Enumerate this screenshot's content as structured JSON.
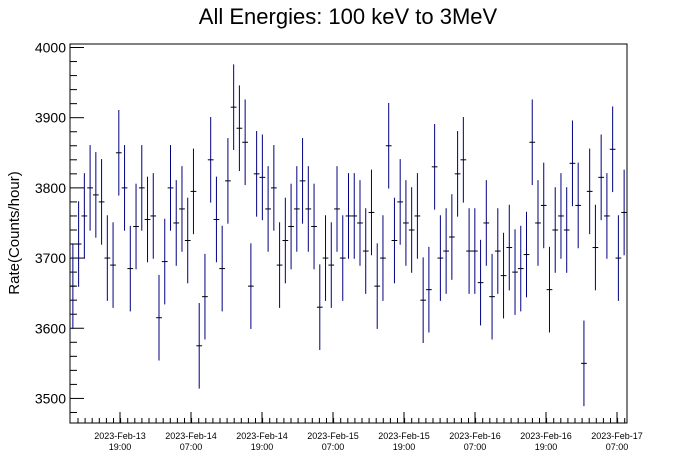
{
  "chart_data": {
    "type": "scatter",
    "title": "All Energies:  100 keV to 3MeV",
    "xlabel": "",
    "ylabel": "Rate(Counts/hour)",
    "ylim": [
      3465,
      4005
    ],
    "yticks": [
      3500,
      3600,
      3700,
      3800,
      3900,
      4000
    ],
    "xtick_labels": [
      {
        "date": "2023-Feb-13",
        "time": "19:00"
      },
      {
        "date": "2023-Feb-14",
        "time": "07:00"
      },
      {
        "date": "2023-Feb-14",
        "time": "19:00"
      },
      {
        "date": "2023-Feb-15",
        "time": "07:00"
      },
      {
        "date": "2023-Feb-15",
        "time": "19:00"
      },
      {
        "date": "2023-Feb-16",
        "time": "07:00"
      },
      {
        "date": "2023-Feb-16",
        "time": "19:00"
      },
      {
        "date": "2023-Feb-17",
        "time": "07:00"
      }
    ],
    "error": 61,
    "grid": false,
    "legend": "none",
    "marker_color": "#000080",
    "series": [
      {
        "values": [
          3660,
          3720,
          3760,
          3800,
          3790,
          3780,
          3700,
          3690,
          3850,
          3800,
          3685,
          3745,
          3800,
          3755,
          3760,
          3615,
          3695,
          3800,
          3750,
          3770,
          3725,
          3795,
          3575,
          3645,
          3840,
          3755,
          3685,
          3810,
          3915,
          3885,
          3865,
          3660,
          3820,
          3815,
          3770,
          3800,
          3690,
          3725,
          3745,
          3770,
          3810,
          3770,
          3745,
          3630,
          3700,
          3690,
          3770,
          3700,
          3760,
          3760,
          3750,
          3710,
          3765,
          3660,
          3700,
          3860,
          3725,
          3780,
          3750,
          3740,
          3760,
          3640,
          3655,
          3830,
          3700,
          3710,
          3730,
          3820,
          3840,
          3710,
          3710,
          3665,
          3750,
          3645,
          3710,
          3675,
          3715,
          3680,
          3685,
          3705,
          3865,
          3750,
          3775,
          3655,
          3740,
          3760,
          3740,
          3835,
          3775,
          3550,
          3795,
          3715,
          3815,
          3760,
          3855,
          3700,
          3765
        ]
      }
    ]
  }
}
